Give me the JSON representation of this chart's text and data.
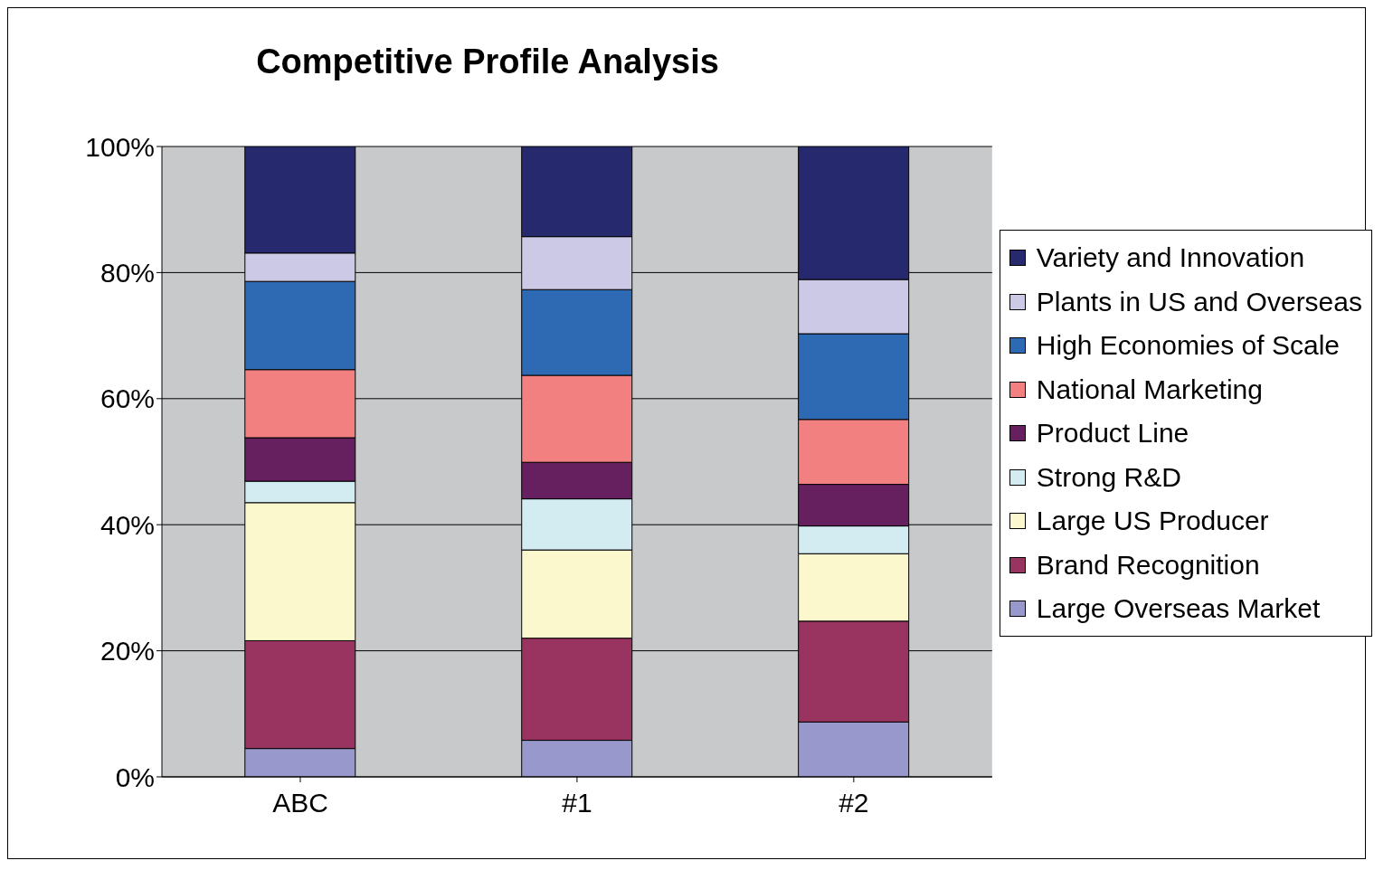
{
  "chart_data": {
    "type": "bar",
    "title": "Competitive Profile Analysis",
    "stacked": true,
    "categories": [
      "ABC",
      "#1",
      "#2"
    ],
    "series": [
      {
        "name": "Large Overseas Market",
        "color": "#9898cc",
        "values": [
          4.5,
          5.8,
          8.7
        ]
      },
      {
        "name": "Brand Recognition",
        "color": "#993360",
        "values": [
          17.1,
          16.2,
          16.0
        ]
      },
      {
        "name": "Large US Producer",
        "color": "#fbf8ce",
        "values": [
          21.9,
          14.0,
          10.7
        ]
      },
      {
        "name": "Strong R&D",
        "color": "#d3ecf2",
        "values": [
          3.4,
          8.1,
          4.4
        ]
      },
      {
        "name": "Product Line",
        "color": "#66205f",
        "values": [
          6.9,
          5.8,
          6.6
        ]
      },
      {
        "name": "National Marketing",
        "color": "#f38080",
        "values": [
          10.8,
          13.8,
          10.3
        ]
      },
      {
        "name": "High Economies of Scale",
        "color": "#2e69b3",
        "values": [
          14.0,
          13.6,
          13.6
        ]
      },
      {
        "name": "Plants in US and Overseas",
        "color": "#ccc9e6",
        "values": [
          4.5,
          8.4,
          8.6
        ]
      },
      {
        "name": "Variety and Innovation",
        "color": "#26296e",
        "values": [
          16.9,
          14.3,
          21.2
        ]
      }
    ],
    "ylim": [
      0,
      100
    ],
    "yticks": [
      {
        "value": 0,
        "label": "0%"
      },
      {
        "value": 20,
        "label": "20%"
      },
      {
        "value": 40,
        "label": "40%"
      },
      {
        "value": 60,
        "label": "60%"
      },
      {
        "value": 80,
        "label": "80%"
      },
      {
        "value": 100,
        "label": "100%"
      }
    ],
    "grid": "y",
    "legend": "right"
  }
}
